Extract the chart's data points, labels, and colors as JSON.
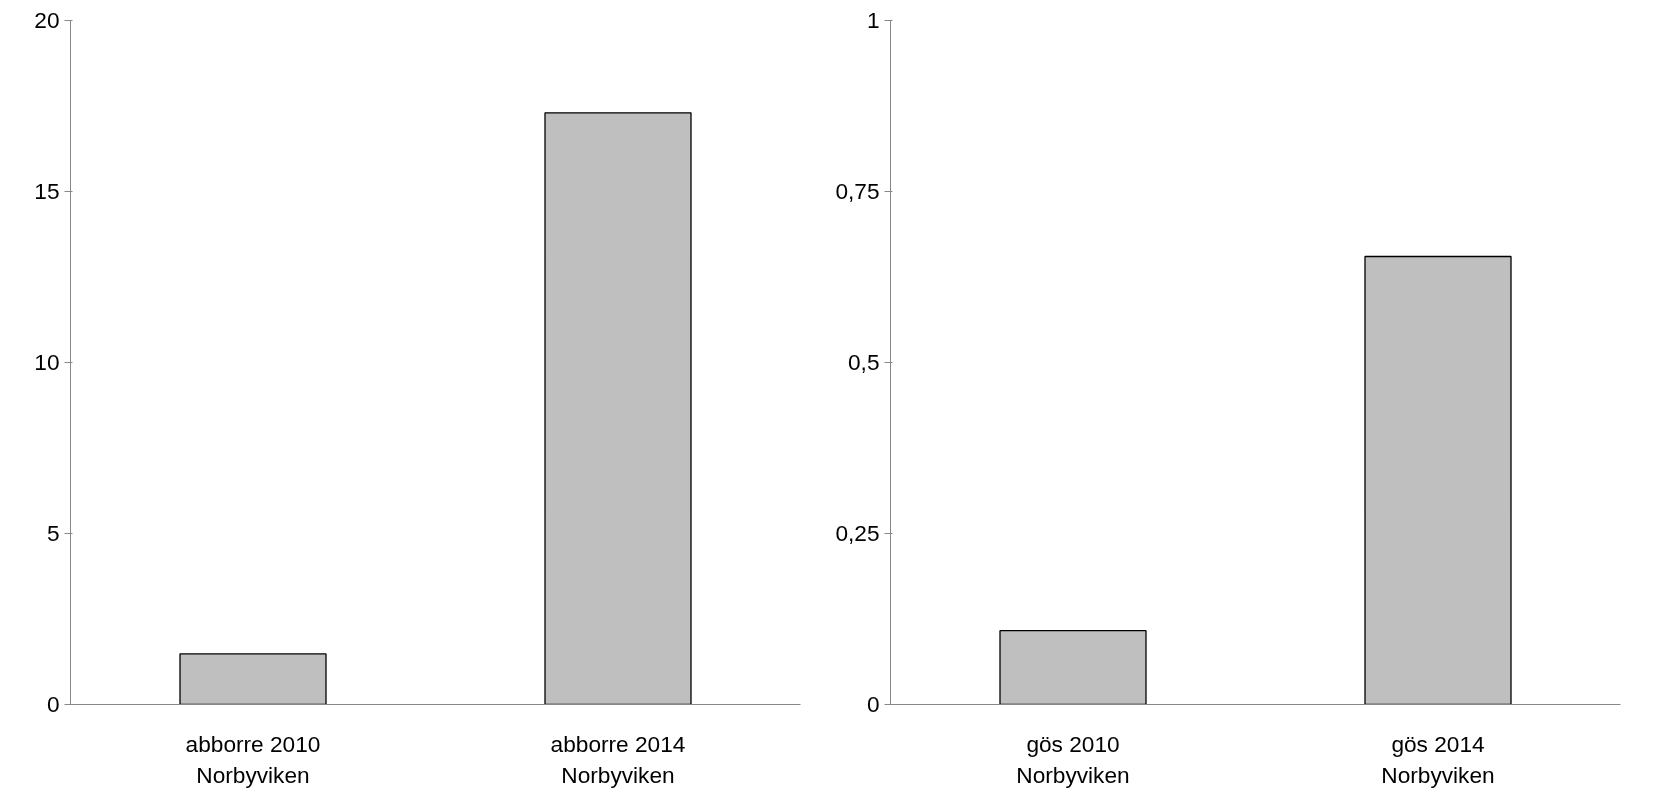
{
  "chart_data": [
    {
      "type": "bar",
      "categories": [
        "abborre 2010\nNorbyviken",
        "abborre 2014\nNorbyviken"
      ],
      "values": [
        1.48,
        17.3
      ],
      "color": "#bfbfbf",
      "ylim": [
        0,
        20
      ],
      "yticks": [
        0,
        5,
        10,
        15,
        20
      ],
      "grid": false
    },
    {
      "type": "bar",
      "categories": [
        "gös 2010\nNorbyviken",
        "gös 2014\nNorbyviken"
      ],
      "values": [
        0.108,
        0.655
      ],
      "color": "#bfbfbf",
      "ylim": [
        0,
        1
      ],
      "yticks": [
        0,
        {
          "value": 0.25,
          "label": "0,25"
        },
        {
          "value": 0.5,
          "label": "0,5"
        },
        {
          "value": 0.75,
          "label": "0,75"
        },
        1
      ],
      "grid": false
    }
  ]
}
